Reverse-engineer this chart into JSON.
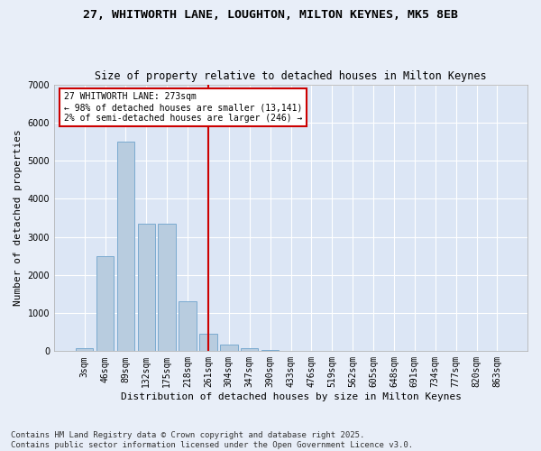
{
  "title": "27, WHITWORTH LANE, LOUGHTON, MILTON KEYNES, MK5 8EB",
  "subtitle": "Size of property relative to detached houses in Milton Keynes",
  "xlabel": "Distribution of detached houses by size in Milton Keynes",
  "ylabel": "Number of detached properties",
  "fig_background_color": "#e8eef8",
  "background_color": "#dce6f5",
  "bar_color": "#b8ccdf",
  "bar_edge_color": "#7aaad0",
  "grid_color": "#ffffff",
  "categories": [
    "3sqm",
    "46sqm",
    "89sqm",
    "132sqm",
    "175sqm",
    "218sqm",
    "261sqm",
    "304sqm",
    "347sqm",
    "390sqm",
    "433sqm",
    "476sqm",
    "519sqm",
    "562sqm",
    "605sqm",
    "648sqm",
    "691sqm",
    "734sqm",
    "777sqm",
    "820sqm",
    "863sqm"
  ],
  "values": [
    80,
    2500,
    5500,
    3350,
    3350,
    1300,
    450,
    175,
    80,
    30,
    0,
    0,
    0,
    0,
    0,
    0,
    0,
    0,
    0,
    0,
    0
  ],
  "ylim": [
    0,
    7000
  ],
  "yticks": [
    0,
    1000,
    2000,
    3000,
    4000,
    5000,
    6000,
    7000
  ],
  "property_line_x": 6,
  "property_line_color": "#cc0000",
  "annotation_text": "27 WHITWORTH LANE: 273sqm\n← 98% of detached houses are smaller (13,141)\n2% of semi-detached houses are larger (246) →",
  "annotation_box_color": "#cc0000",
  "footnote": "Contains HM Land Registry data © Crown copyright and database right 2025.\nContains public sector information licensed under the Open Government Licence v3.0.",
  "title_fontsize": 9.5,
  "subtitle_fontsize": 8.5,
  "label_fontsize": 8,
  "tick_fontsize": 7,
  "annotation_fontsize": 7,
  "footnote_fontsize": 6.5
}
